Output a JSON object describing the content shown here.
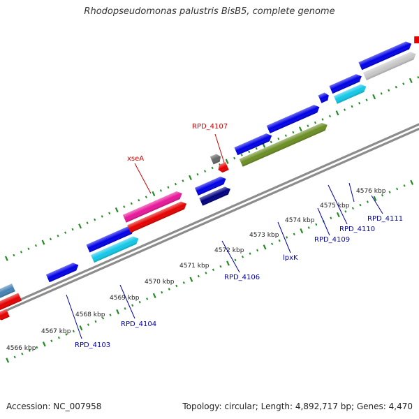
{
  "title": "Rhodopseudomonas palustris BisB5, complete genome",
  "footer": {
    "accession": "Accession: NC_007958",
    "summary": "Topology: circular; Length: 4,892,717 bp; Genes: 4,470"
  },
  "ticks": [
    "4566 kbp",
    "4567 kbp",
    "4568 kbp",
    "4569 kbp",
    "4570 kbp",
    "4571 kbp",
    "4572 kbp",
    "4573 kbp",
    "4574 kbp",
    "4575 kbp",
    "4576 kbp"
  ],
  "gene_labels": [
    {
      "text": "RPD_4107",
      "color": "#cc0000"
    },
    {
      "text": "xseA",
      "color": "#cc0000"
    },
    {
      "text": "RPD_4103",
      "color": "#0000aa"
    },
    {
      "text": "RPD_4104",
      "color": "#0000aa"
    },
    {
      "text": "RPD_4106",
      "color": "#0000aa"
    },
    {
      "text": "lpxK",
      "color": "#0000aa"
    },
    {
      "text": "RPD_4109",
      "color": "#0000aa"
    },
    {
      "text": "RPD_4110",
      "color": "#0000aa"
    },
    {
      "text": "RPD_4111",
      "color": "#0000aa"
    }
  ],
  "colors": {
    "backbone": "#8c8c8c",
    "ruler": "#228b22",
    "forward_gene": "#0000e6",
    "reverse_gene": "#e60000",
    "pink_gene": "#e8179a",
    "cyan_gene": "#12c8e8",
    "olive_gene": "#6b8e23",
    "navy_gene": "#000080",
    "steel_gene": "#4682b4",
    "gray_gene": "#c8c8c8",
    "dark_gray_gene": "#666666"
  }
}
